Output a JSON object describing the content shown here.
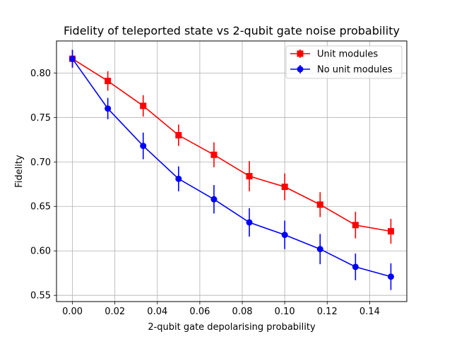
{
  "chart_data": {
    "type": "line",
    "title": "Fidelity of teleported state vs 2-qubit gate noise probability",
    "xlabel": "2-qubit gate depolarising probability",
    "ylabel": "Fidelity",
    "xlim": [
      -0.0075,
      0.1575
    ],
    "ylim": [
      0.543,
      0.836
    ],
    "xticks": [
      0.0,
      0.02,
      0.04,
      0.06,
      0.08,
      0.1,
      0.12,
      0.14
    ],
    "xtick_labels": [
      "0.00",
      "0.02",
      "0.04",
      "0.06",
      "0.08",
      "0.10",
      "0.12",
      "0.14"
    ],
    "yticks": [
      0.55,
      0.6,
      0.65,
      0.7,
      0.75,
      0.8
    ],
    "ytick_labels": [
      "0.55",
      "0.60",
      "0.65",
      "0.70",
      "0.75",
      "0.80"
    ],
    "grid": true,
    "legend_position": "upper right",
    "x": [
      0.0,
      0.01667,
      0.03333,
      0.05,
      0.06667,
      0.08333,
      0.1,
      0.11667,
      0.13333,
      0.15
    ],
    "series": [
      {
        "name": "Unit modules",
        "color": "#ff0000",
        "marker": "square",
        "values": [
          0.816,
          0.791,
          0.763,
          0.73,
          0.708,
          0.684,
          0.672,
          0.652,
          0.629,
          0.622
        ],
        "errors": [
          0.01,
          0.011,
          0.012,
          0.012,
          0.014,
          0.017,
          0.015,
          0.014,
          0.015,
          0.014
        ]
      },
      {
        "name": "No unit modules",
        "color": "#0000ff",
        "marker": "circle",
        "values": [
          0.816,
          0.76,
          0.718,
          0.681,
          0.658,
          0.632,
          0.618,
          0.602,
          0.582,
          0.571
        ],
        "errors": [
          0.01,
          0.012,
          0.015,
          0.014,
          0.016,
          0.016,
          0.016,
          0.017,
          0.015,
          0.015
        ]
      }
    ]
  }
}
